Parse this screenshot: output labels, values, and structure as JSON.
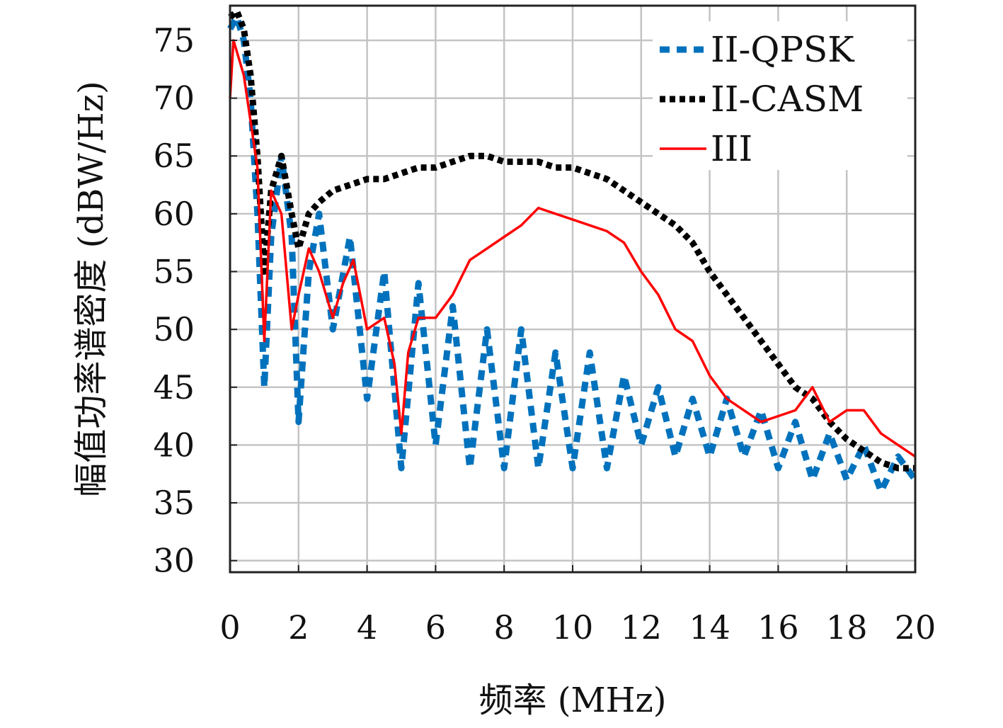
{
  "chart_data": {
    "type": "line",
    "title": "",
    "xlabel": "频率 (MHz)",
    "ylabel": "幅值功率谱密度 (dBW/Hz)",
    "xlim": [
      0,
      20
    ],
    "ylim": [
      29,
      78
    ],
    "xticks": [
      0,
      2,
      4,
      6,
      8,
      10,
      12,
      14,
      16,
      18,
      20
    ],
    "yticks": [
      30,
      35,
      40,
      45,
      50,
      55,
      60,
      65,
      70,
      75
    ],
    "grid": true,
    "legend_position": "top-right",
    "series": [
      {
        "name": "II-QPSK",
        "style": "dashed",
        "color": "#0072BD",
        "x": [
          0,
          0.2,
          0.4,
          0.6,
          0.8,
          1.0,
          1.2,
          1.5,
          1.8,
          2.0,
          2.3,
          2.6,
          3.0,
          3.5,
          4.0,
          4.5,
          5.0,
          5.5,
          6.0,
          6.5,
          7.0,
          7.5,
          8.0,
          8.5,
          9.0,
          9.5,
          10.0,
          10.5,
          11.0,
          11.5,
          12.0,
          12.5,
          13.0,
          13.5,
          14.0,
          14.5,
          15.0,
          15.5,
          16.0,
          16.5,
          17.0,
          17.5,
          18.0,
          18.5,
          19.0,
          19.5,
          20.0
        ],
        "y": [
          76,
          77,
          75,
          70,
          60,
          45,
          58,
          65,
          58,
          42,
          55,
          60,
          50,
          58,
          44,
          55,
          38,
          54,
          40,
          52,
          38,
          50,
          38,
          50,
          38,
          48,
          38,
          48,
          38,
          46,
          40,
          45,
          39,
          44,
          39,
          44,
          39,
          43,
          38,
          42,
          37,
          41,
          37,
          40,
          36,
          39,
          37
        ]
      },
      {
        "name": "II-CASM",
        "style": "dotted",
        "color": "#000000",
        "x": [
          0,
          0.2,
          0.4,
          0.6,
          0.8,
          1.0,
          1.2,
          1.5,
          1.8,
          2.0,
          2.3,
          2.6,
          3.0,
          3.5,
          4.0,
          4.5,
          5.0,
          5.5,
          6.0,
          6.5,
          7.0,
          7.5,
          8.0,
          8.5,
          9.0,
          9.5,
          10.0,
          10.5,
          11.0,
          11.5,
          12.0,
          12.5,
          13.0,
          13.5,
          14.0,
          14.5,
          15.0,
          15.5,
          16.0,
          16.5,
          17.0,
          17.5,
          18.0,
          18.5,
          19.0,
          19.5,
          20.0
        ],
        "y": [
          77,
          77.5,
          76,
          72,
          65,
          55,
          62,
          65,
          60,
          57,
          60,
          61,
          62,
          62.5,
          63,
          63,
          63.5,
          64,
          64,
          64.5,
          65,
          65,
          64.5,
          64.5,
          64.5,
          64,
          64,
          63.5,
          63,
          62,
          61,
          60,
          59,
          57.5,
          55,
          53,
          51,
          49,
          47,
          45,
          44,
          42,
          40.5,
          39.5,
          38.5,
          38,
          38
        ]
      },
      {
        "name": "III",
        "style": "solid",
        "color": "#ff0000",
        "x": [
          0,
          0.1,
          0.2,
          0.4,
          0.6,
          0.8,
          1.0,
          1.2,
          1.5,
          1.8,
          2.0,
          2.3,
          2.6,
          3.0,
          3.3,
          3.6,
          4.0,
          4.5,
          4.8,
          5.0,
          5.2,
          5.5,
          6.0,
          6.5,
          7.0,
          7.5,
          8.0,
          8.5,
          9.0,
          9.5,
          10.0,
          10.5,
          11.0,
          11.5,
          12.0,
          12.5,
          13.0,
          13.5,
          14.0,
          14.5,
          15.0,
          15.5,
          16.0,
          16.5,
          17.0,
          17.5,
          18.0,
          18.5,
          19.0,
          19.5,
          20.0
        ],
        "y": [
          70,
          75,
          74,
          72,
          68,
          64,
          49,
          62,
          60,
          50,
          53,
          57,
          55,
          51,
          54,
          56,
          50,
          51,
          47,
          41,
          48,
          51,
          51,
          53,
          56,
          57,
          58,
          59,
          60.5,
          60,
          59.5,
          59,
          58.5,
          57.5,
          55,
          53,
          50,
          49,
          46,
          44,
          43,
          42,
          42.5,
          43,
          45,
          42,
          43,
          43,
          41,
          40,
          39
        ]
      }
    ]
  }
}
